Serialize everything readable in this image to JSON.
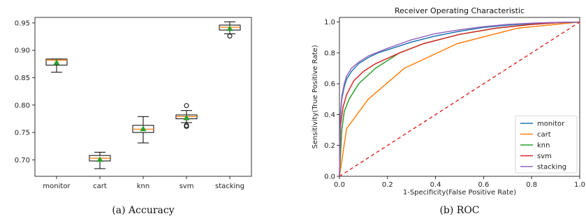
{
  "chart_data": [
    {
      "type": "box",
      "title": "",
      "ylim": [
        0.67,
        0.96
      ],
      "yticks": [
        "0.70",
        "0.75",
        "0.80",
        "0.85",
        "0.90",
        "0.95"
      ],
      "categories": [
        "monitor",
        "cart",
        "knn",
        "svm",
        "stacking"
      ],
      "boxes": [
        {
          "name": "monitor",
          "whislo": 0.86,
          "q1": 0.873,
          "med": 0.882,
          "q3": 0.884,
          "whishi": 0.884,
          "mean": 0.878,
          "fliers": []
        },
        {
          "name": "cart",
          "whislo": 0.684,
          "q1": 0.698,
          "med": 0.703,
          "q3": 0.708,
          "whishi": 0.714,
          "mean": 0.701,
          "fliers": []
        },
        {
          "name": "knn",
          "whislo": 0.731,
          "q1": 0.75,
          "med": 0.756,
          "q3": 0.763,
          "whishi": 0.779,
          "mean": 0.757,
          "fliers": []
        },
        {
          "name": "svm",
          "whislo": 0.768,
          "q1": 0.775,
          "med": 0.779,
          "q3": 0.782,
          "whishi": 0.79,
          "mean": 0.777,
          "fliers": [
            0.799,
            0.761,
            0.763
          ]
        },
        {
          "name": "stacking",
          "whislo": 0.93,
          "q1": 0.937,
          "med": 0.942,
          "q3": 0.946,
          "whishi": 0.952,
          "mean": 0.94,
          "fliers": [
            0.926
          ]
        }
      ],
      "colors": {
        "box": "#000000",
        "median": "#ff7f0e",
        "mean": "#2ca02c"
      },
      "caption": "(a)  Accuracy"
    },
    {
      "type": "line",
      "title": "Receiver Operating Characteristic",
      "xlabel": "1-Specificity(False Positive Rate)",
      "ylabel": "Sensitivity(True Positive Rate)",
      "xlim": [
        0,
        1
      ],
      "ylim": [
        0,
        1.03
      ],
      "xticks": [
        "0.0",
        "0.2",
        "0.4",
        "0.6",
        "0.8",
        "1.0"
      ],
      "yticks": [
        "0.0",
        "0.2",
        "0.4",
        "0.6",
        "0.8",
        "1.0"
      ],
      "legend_position": "bottom-right",
      "series": [
        {
          "name": "monitor",
          "color": "#1f77b4",
          "x": [
            0,
            0.004,
            0.01,
            0.02,
            0.03,
            0.05,
            0.08,
            0.12,
            0.16,
            0.2,
            0.3,
            0.4,
            0.5,
            0.6,
            0.7,
            0.8,
            0.9,
            1.0
          ],
          "y": [
            0,
            0.38,
            0.5,
            0.58,
            0.63,
            0.68,
            0.73,
            0.77,
            0.8,
            0.82,
            0.87,
            0.91,
            0.94,
            0.965,
            0.98,
            0.99,
            0.997,
            1.0
          ]
        },
        {
          "name": "cart",
          "color": "#ff7f0e",
          "x": [
            0,
            0.03,
            0.12,
            0.27,
            0.49,
            0.74,
            1.0
          ],
          "y": [
            0,
            0.31,
            0.5,
            0.7,
            0.86,
            0.96,
            1.0
          ]
        },
        {
          "name": "knn",
          "color": "#2ca02c",
          "x": [
            0,
            0.01,
            0.02,
            0.04,
            0.08,
            0.15,
            0.25,
            0.35,
            0.5,
            0.65,
            0.8,
            0.9,
            1.0
          ],
          "y": [
            0,
            0.3,
            0.42,
            0.5,
            0.6,
            0.7,
            0.8,
            0.86,
            0.92,
            0.96,
            0.985,
            0.995,
            1.0
          ]
        },
        {
          "name": "svm",
          "color": "#d62728",
          "x": [
            0,
            0.005,
            0.015,
            0.03,
            0.06,
            0.1,
            0.15,
            0.25,
            0.35,
            0.5,
            0.65,
            0.8,
            0.9,
            1.0
          ],
          "y": [
            0,
            0.33,
            0.45,
            0.53,
            0.62,
            0.68,
            0.73,
            0.8,
            0.86,
            0.92,
            0.96,
            0.985,
            0.995,
            1.0
          ]
        },
        {
          "name": "stacking",
          "color": "#9467bd",
          "x": [
            0,
            0.004,
            0.01,
            0.02,
            0.03,
            0.05,
            0.08,
            0.12,
            0.16,
            0.2,
            0.3,
            0.4,
            0.5,
            0.6,
            0.7,
            0.8,
            0.9,
            1.0
          ],
          "y": [
            0,
            0.4,
            0.52,
            0.6,
            0.65,
            0.7,
            0.74,
            0.78,
            0.805,
            0.83,
            0.885,
            0.925,
            0.95,
            0.97,
            0.985,
            0.993,
            0.998,
            1.0
          ]
        },
        {
          "name": "",
          "color": "#e03030",
          "dashed": true,
          "x": [
            0,
            1
          ],
          "y": [
            0,
            1
          ]
        }
      ],
      "caption": "(b)  ROC"
    }
  ]
}
